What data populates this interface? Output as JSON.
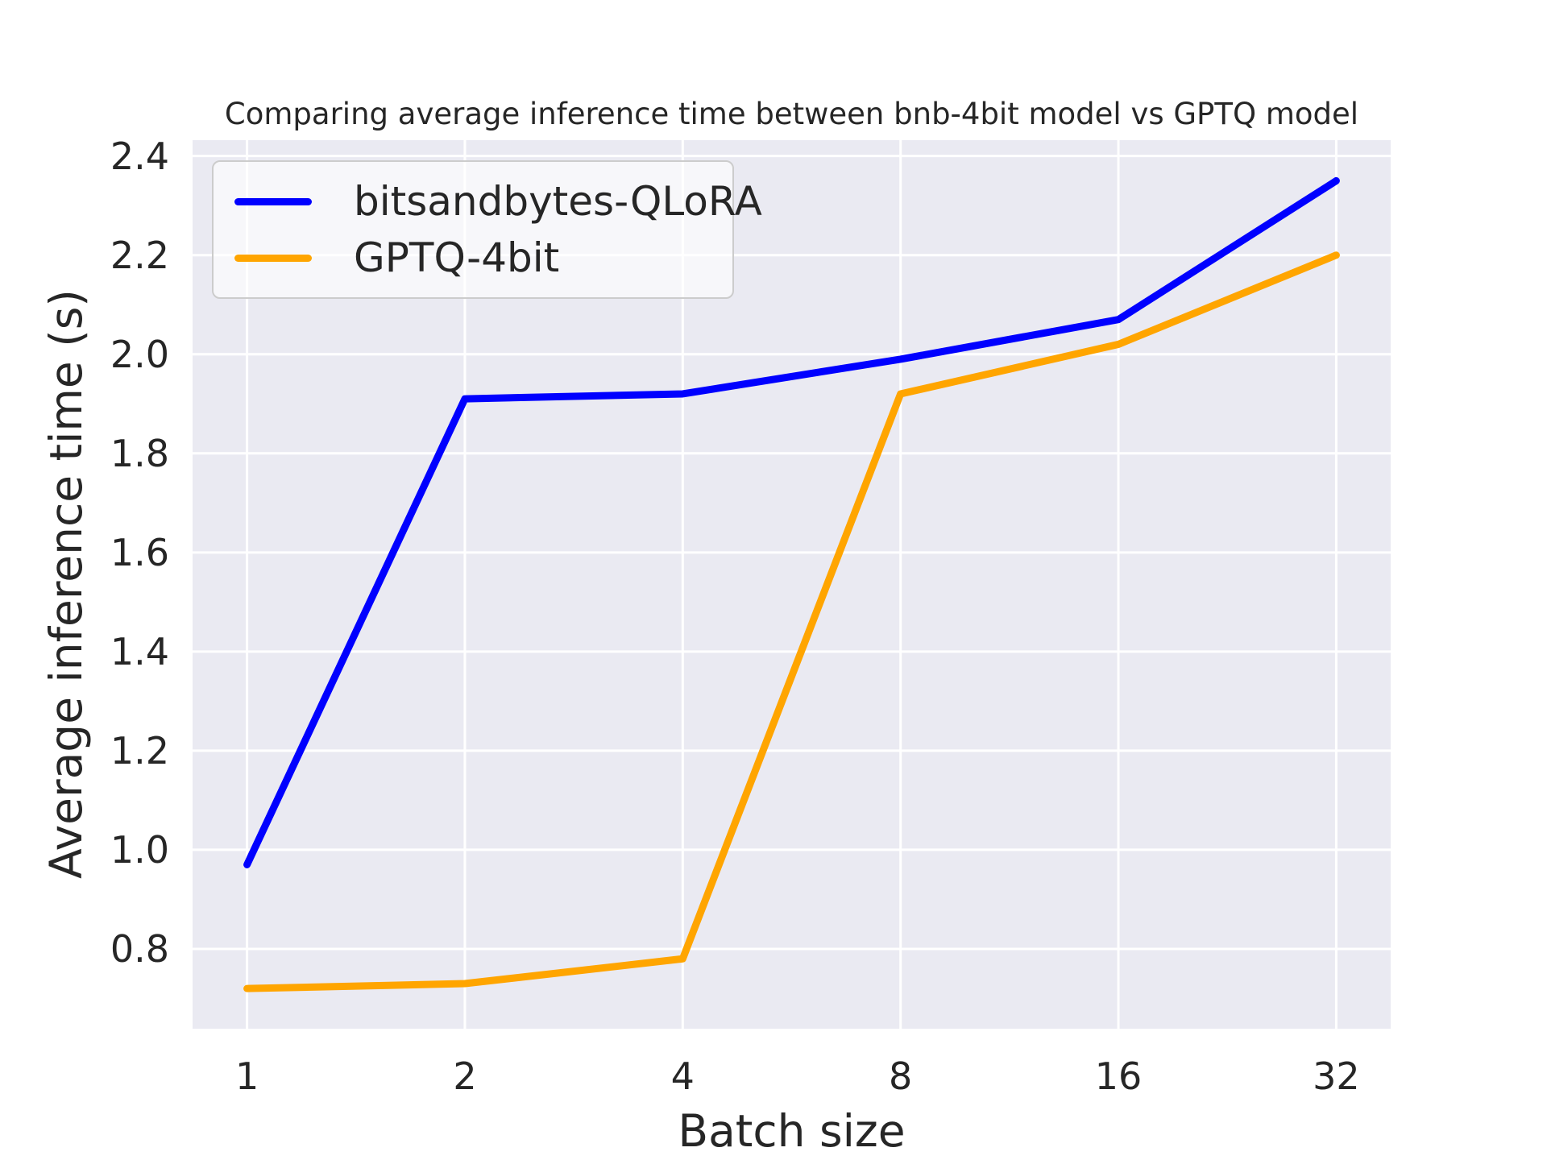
{
  "colors": {
    "plot_background": "#eaeaf2",
    "grid": "#ffffff",
    "text": "#262626",
    "series_blue": "#0000ff",
    "series_orange": "#ffa500",
    "legend_border": "#cccccc"
  },
  "chart_data": {
    "type": "line",
    "title": "Comparing average inference time between bnb-4bit model vs GPTQ model",
    "xlabel": "Batch size",
    "ylabel": "Average inference time (s)",
    "x": [
      1,
      2,
      4,
      8,
      16,
      32
    ],
    "x_tick_labels": [
      "1",
      "2",
      "4",
      "8",
      "16",
      "32"
    ],
    "xscale": "log2",
    "xlim_log2": [
      -0.25,
      5.25
    ],
    "y_ticks": [
      0.8,
      1.0,
      1.2,
      1.4,
      1.6,
      1.8,
      2.0,
      2.2,
      2.4
    ],
    "ylim": [
      0.639,
      2.432
    ],
    "grid": true,
    "legend_position": "upper-left",
    "series": [
      {
        "name": "bitsandbytes-QLoRA",
        "color": "#0000ff",
        "values": [
          0.97,
          1.91,
          1.92,
          1.99,
          2.07,
          2.35
        ]
      },
      {
        "name": "GPTQ-4bit",
        "color": "#ffa500",
        "values": [
          0.72,
          0.73,
          0.78,
          1.92,
          2.02,
          2.2
        ]
      }
    ]
  }
}
